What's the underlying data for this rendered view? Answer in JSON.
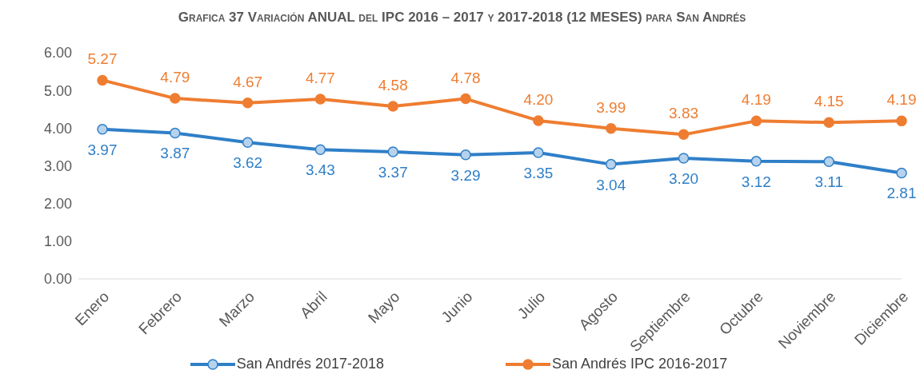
{
  "chart_data": {
    "type": "line",
    "title": "Grafica 37 Variación ANUAL del IPC 2016 – 2017 y 2017-2018 (12 MESES) para San Andrés",
    "categories": [
      "Enero",
      "Febrero",
      "Marzo",
      "Abril",
      "Mayo",
      "Junio",
      "Julio",
      "Agosto",
      "Septiembre",
      "Octubre",
      "Noviembre",
      "Diciembre"
    ],
    "series": [
      {
        "name": "San Andrés 2017-2018",
        "color": "#2f7fc8",
        "values": [
          3.97,
          3.87,
          3.62,
          3.43,
          3.37,
          3.29,
          3.35,
          3.04,
          3.2,
          3.12,
          3.11,
          2.81
        ],
        "value_labels": [
          "3.97",
          "3.87",
          "3.62",
          "3.43",
          "3.37",
          "3.29",
          "3.35",
          "3.04",
          "3.20",
          "3.12",
          "3.11",
          "2.81"
        ]
      },
      {
        "name": "San Andrés IPC 2016-2017",
        "color": "#ef7d31",
        "values": [
          5.27,
          4.79,
          4.67,
          4.77,
          4.58,
          4.78,
          4.2,
          3.99,
          3.83,
          4.19,
          4.15,
          4.19
        ],
        "value_labels": [
          "5.27",
          "4.79",
          "4.67",
          "4.77",
          "4.58",
          "4.78",
          "4.20",
          "3.99",
          "3.83",
          "4.19",
          "4.15",
          "4.19"
        ]
      }
    ],
    "ylim": [
      0,
      6
    ],
    "yticks": [
      {
        "value": 0,
        "label": "0.00"
      },
      {
        "value": 1,
        "label": "1.00"
      },
      {
        "value": 2,
        "label": "2.00"
      },
      {
        "value": 3,
        "label": "3.00"
      },
      {
        "value": 4,
        "label": "4.00"
      },
      {
        "value": 5,
        "label": "5.00"
      },
      {
        "value": 6,
        "label": "6.00"
      }
    ],
    "grid": false,
    "legend": "bottom",
    "marker": "circle",
    "line_style": "solid"
  }
}
